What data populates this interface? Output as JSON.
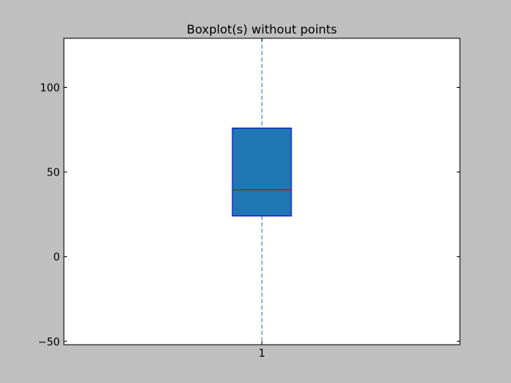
{
  "chart_data": {
    "type": "boxplot",
    "title": "Boxplot(s) without points",
    "xlabel": "",
    "ylabel": "",
    "categories": [
      "1"
    ],
    "ylim": [
      -52,
      129
    ],
    "yticks": [
      -50,
      0,
      50,
      100
    ],
    "series": [
      {
        "category": "1",
        "whisker_low": -52,
        "q1": 24,
        "median": 39.5,
        "q3": 76,
        "whisker_high": 129
      }
    ],
    "grid": false,
    "colors": {
      "figure_background": "#bfbfbf",
      "plot_background": "#ffffff",
      "box_fill": "#1f77b4",
      "box_edge": "#0000cc",
      "median": "#cc0000",
      "whisker": "#1f77b4"
    }
  }
}
